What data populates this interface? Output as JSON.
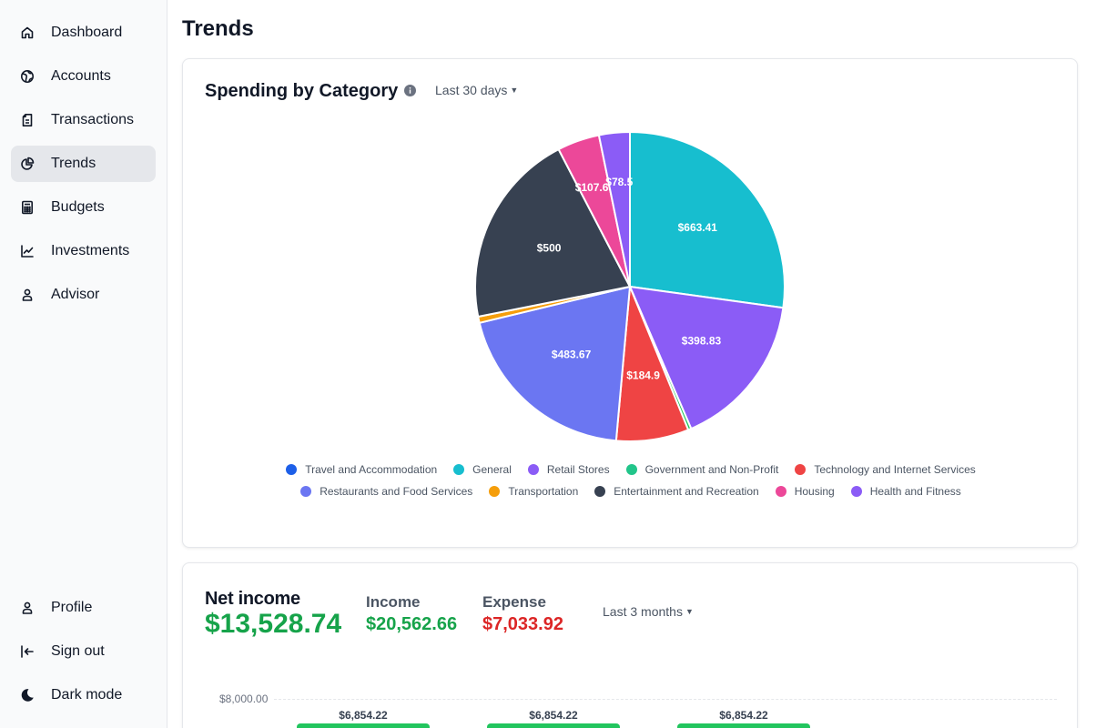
{
  "sidebar": {
    "items": [
      {
        "label": "Dashboard",
        "icon": "home-icon"
      },
      {
        "label": "Accounts",
        "icon": "globe-icon"
      },
      {
        "label": "Transactions",
        "icon": "receipt-icon"
      },
      {
        "label": "Trends",
        "icon": "pie-chart-icon",
        "active": true
      },
      {
        "label": "Budgets",
        "icon": "calculator-icon"
      },
      {
        "label": "Investments",
        "icon": "line-chart-icon"
      },
      {
        "label": "Advisor",
        "icon": "user-icon"
      }
    ],
    "bottom_items": [
      {
        "label": "Profile",
        "icon": "user-icon"
      },
      {
        "label": "Sign out",
        "icon": "sign-out-icon"
      },
      {
        "label": "Dark mode",
        "icon": "moon-icon"
      }
    ]
  },
  "page": {
    "title": "Trends"
  },
  "spending": {
    "title": "Spending by Category",
    "range_label": "Last 30 days"
  },
  "chart_data": {
    "type": "pie",
    "categories": [
      "General",
      "Retail Stores",
      "Government and Non-Profit",
      "Technology and Internet Services",
      "Restaurants and Food Services",
      "Transportation",
      "Entertainment and Recreation",
      "Housing",
      "Health and Fitness"
    ],
    "values": [
      663.41,
      398.83,
      8,
      184.9,
      483.67,
      16,
      500,
      107.63,
      78.5
    ],
    "value_labels": [
      "$663.41",
      "$398.83",
      "",
      "$184.9",
      "$483.67",
      "",
      "$500",
      "$107.63",
      "$78.5"
    ],
    "colors": [
      "#17becf",
      "#8b5cf6",
      "#22c55e",
      "#ef4444",
      "#6b76f2",
      "#f59e0b",
      "#374151",
      "#ec4899",
      "#8b5cf6"
    ],
    "legend": [
      {
        "label": "Travel and Accommodation",
        "color": "#1d5fe8"
      },
      {
        "label": "General",
        "color": "#17becf"
      },
      {
        "label": "Retail Stores",
        "color": "#8b5cf6"
      },
      {
        "label": "Government and Non-Profit",
        "color": "#22c58a"
      },
      {
        "label": "Technology and Internet Services",
        "color": "#ef4444"
      },
      {
        "label": "Restaurants and Food Services",
        "color": "#6b76f2"
      },
      {
        "label": "Transportation",
        "color": "#f59e0b"
      },
      {
        "label": "Entertainment and Recreation",
        "color": "#374151"
      },
      {
        "label": "Housing",
        "color": "#ec4899"
      },
      {
        "label": "Health and Fitness",
        "color": "#8b5cf6"
      }
    ]
  },
  "net_income": {
    "title": "Net income",
    "value": "$13,528.74",
    "value_color": "#16a34a",
    "income_label": "Income",
    "income_value": "$20,562.66",
    "income_color": "#16a34a",
    "expense_label": "Expense",
    "expense_value": "$7,033.92",
    "expense_color": "#dc2626",
    "range_label": "Last 3 months",
    "axis_tick": "$8,000.00",
    "bar_color": "#22c55e",
    "bars": [
      {
        "label": "$6,854.22",
        "value": 6854.22
      },
      {
        "label": "$6,854.22",
        "value": 6854.22
      },
      {
        "label": "$6,854.22",
        "value": 6854.22
      }
    ]
  }
}
